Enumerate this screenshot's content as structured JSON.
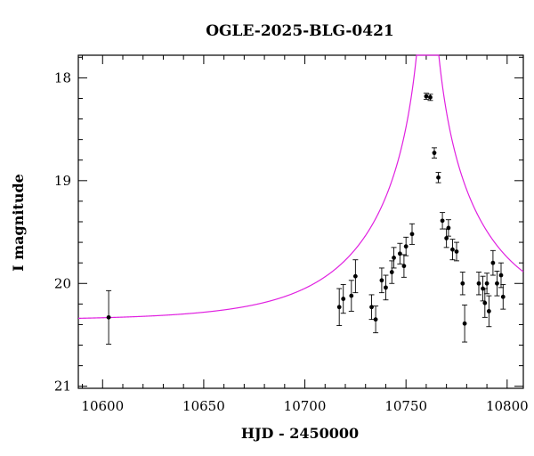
{
  "chart_data": {
    "type": "scatter",
    "title": "OGLE-2025-BLG-0421",
    "xlabel": "HJD - 2450000",
    "ylabel": "I magnitude",
    "xlim": [
      10588,
      10808
    ],
    "ylim": [
      21.02,
      17.78
    ],
    "y_inverted": true,
    "xticks": [
      10600,
      10650,
      10700,
      10750,
      10800
    ],
    "yticks": [
      18,
      19,
      20,
      21
    ],
    "grid": false,
    "legend": "none",
    "colors": {
      "data": "#000000",
      "model": "#e020e0",
      "axes": "#000000"
    },
    "series": [
      {
        "type": "scatter_errorbar",
        "points": [
          {
            "x": 10603,
            "y": 20.33,
            "err": 0.26
          },
          {
            "x": 10717,
            "y": 20.23,
            "err": 0.18
          },
          {
            "x": 10719,
            "y": 20.15,
            "err": 0.14
          },
          {
            "x": 10723,
            "y": 20.12,
            "err": 0.15
          },
          {
            "x": 10725,
            "y": 19.93,
            "err": 0.16
          },
          {
            "x": 10733,
            "y": 20.23,
            "err": 0.12
          },
          {
            "x": 10735,
            "y": 20.35,
            "err": 0.13
          },
          {
            "x": 10738,
            "y": 19.97,
            "err": 0.12
          },
          {
            "x": 10740,
            "y": 20.04,
            "err": 0.12
          },
          {
            "x": 10743,
            "y": 19.89,
            "err": 0.11
          },
          {
            "x": 10744,
            "y": 19.75,
            "err": 0.1
          },
          {
            "x": 10747,
            "y": 19.71,
            "err": 0.1
          },
          {
            "x": 10749,
            "y": 19.83,
            "err": 0.11
          },
          {
            "x": 10750,
            "y": 19.64,
            "err": 0.09
          },
          {
            "x": 10753,
            "y": 19.52,
            "err": 0.1
          },
          {
            "x": 10760,
            "y": 18.18,
            "err": 0.03
          },
          {
            "x": 10762,
            "y": 18.19,
            "err": 0.03
          },
          {
            "x": 10764,
            "y": 18.73,
            "err": 0.05
          },
          {
            "x": 10766,
            "y": 18.97,
            "err": 0.05
          },
          {
            "x": 10768,
            "y": 19.39,
            "err": 0.08
          },
          {
            "x": 10770,
            "y": 19.56,
            "err": 0.09
          },
          {
            "x": 10771,
            "y": 19.46,
            "err": 0.08
          },
          {
            "x": 10773,
            "y": 19.67,
            "err": 0.1
          },
          {
            "x": 10775,
            "y": 19.69,
            "err": 0.09
          },
          {
            "x": 10778,
            "y": 20.0,
            "err": 0.11
          },
          {
            "x": 10779,
            "y": 20.39,
            "err": 0.18
          },
          {
            "x": 10786,
            "y": 20.0,
            "err": 0.11
          },
          {
            "x": 10788,
            "y": 20.05,
            "err": 0.12
          },
          {
            "x": 10789,
            "y": 20.19,
            "err": 0.14
          },
          {
            "x": 10790,
            "y": 20.0,
            "err": 0.1
          },
          {
            "x": 10791,
            "y": 20.27,
            "err": 0.15
          },
          {
            "x": 10793,
            "y": 19.8,
            "err": 0.12
          },
          {
            "x": 10795,
            "y": 20.0,
            "err": 0.12
          },
          {
            "x": 10797,
            "y": 19.92,
            "err": 0.12
          },
          {
            "x": 10798,
            "y": 20.13,
            "err": 0.12
          }
        ]
      },
      {
        "type": "line",
        "model": "paczynski",
        "params": {
          "t0": 10760.7,
          "tE": 60,
          "u0": 0.015,
          "Ibase": 20.36,
          "fs": 1.0
        }
      }
    ]
  }
}
